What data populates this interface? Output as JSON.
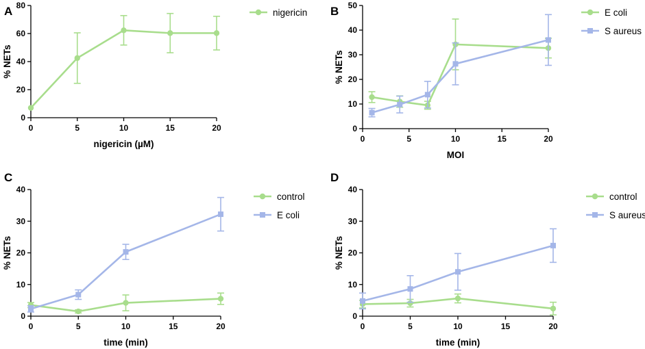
{
  "colors": {
    "green": "#a8dd8c",
    "blue": "#a4b6e8"
  },
  "chart_data": [
    {
      "panel": "A",
      "type": "line",
      "xlabel": "nigericin (µM)",
      "ylabel": "% NETs",
      "xlim": [
        0,
        20
      ],
      "ylim": [
        0,
        80
      ],
      "xticks": [
        0,
        5,
        10,
        15,
        20
      ],
      "yticks": [
        0,
        20,
        40,
        60,
        80
      ],
      "legend_position": "top-right",
      "series": [
        {
          "name": "nigericin",
          "color": "green",
          "marker": "circle",
          "x": [
            0,
            5,
            10,
            15,
            20
          ],
          "y": [
            7,
            42.5,
            62.3,
            60.3,
            60.3
          ],
          "err": [
            0,
            18,
            10.5,
            14,
            12
          ]
        }
      ]
    },
    {
      "panel": "B",
      "type": "line",
      "xlabel": "MOI",
      "ylabel": "% NETs",
      "xlim": [
        0,
        20
      ],
      "ylim": [
        0,
        50
      ],
      "xticks": [
        0,
        5,
        10,
        15,
        20
      ],
      "yticks": [
        0,
        10,
        20,
        30,
        40,
        50
      ],
      "legend_position": "top-right",
      "series": [
        {
          "name": "E coli",
          "color": "green",
          "marker": "circle",
          "x": [
            1,
            4,
            7,
            10,
            20
          ],
          "y": [
            12.8,
            11,
            9.5,
            34.2,
            32.7
          ],
          "err": [
            2.2,
            2.3,
            1.6,
            10.3,
            4
          ]
        },
        {
          "name": "S aureus",
          "color": "blue",
          "marker": "square",
          "x": [
            1,
            4,
            7,
            10,
            20
          ],
          "y": [
            6.5,
            9.8,
            13.8,
            26.3,
            36
          ],
          "err": [
            1.7,
            3.4,
            5.4,
            8.5,
            10.3
          ]
        }
      ]
    },
    {
      "panel": "C",
      "type": "line",
      "xlabel": "time (min)",
      "ylabel": "% NETs",
      "xlim": [
        0,
        20
      ],
      "ylim": [
        0,
        40
      ],
      "xticks": [
        0,
        5,
        10,
        15,
        20
      ],
      "yticks": [
        0,
        10,
        20,
        30,
        40
      ],
      "legend_position": "top-right",
      "series": [
        {
          "name": "control",
          "color": "green",
          "marker": "circle",
          "x": [
            0,
            5,
            10,
            20
          ],
          "y": [
            3.5,
            1.5,
            4.2,
            5.5
          ],
          "err": [
            0.8,
            0.5,
            2.5,
            1.8
          ]
        },
        {
          "name": "E coli",
          "color": "blue",
          "marker": "square",
          "x": [
            0,
            5,
            10,
            20
          ],
          "y": [
            2.3,
            6.8,
            20.3,
            32.2
          ],
          "err": [
            1,
            1.5,
            2.4,
            5.3
          ]
        }
      ]
    },
    {
      "panel": "D",
      "type": "line",
      "xlabel": "time (min)",
      "ylabel": "% NETs",
      "xlim": [
        0,
        20
      ],
      "ylim": [
        0,
        40
      ],
      "xticks": [
        0,
        5,
        10,
        15,
        20
      ],
      "yticks": [
        0,
        10,
        20,
        30,
        40
      ],
      "legend_position": "top-right",
      "series": [
        {
          "name": "control",
          "color": "green",
          "marker": "circle",
          "x": [
            0,
            5,
            10,
            20
          ],
          "y": [
            3.8,
            4.1,
            5.6,
            2.4
          ],
          "err": [
            1.2,
            1.2,
            1.4,
            2
          ]
        },
        {
          "name": "S aureus",
          "color": "blue",
          "marker": "square",
          "x": [
            0,
            5,
            10,
            20
          ],
          "y": [
            4.8,
            8.6,
            14,
            22.3
          ],
          "err": [
            2.5,
            4.2,
            5.8,
            5.3
          ]
        }
      ]
    }
  ]
}
